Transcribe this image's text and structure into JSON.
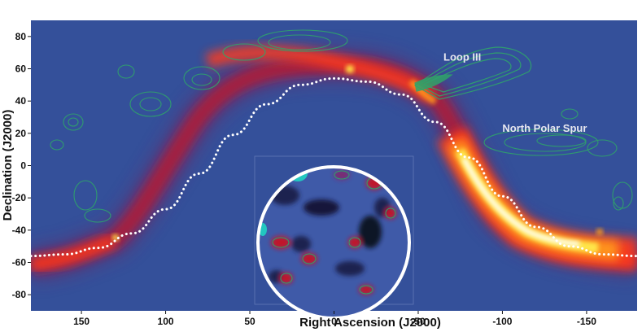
{
  "chart_data": {
    "type": "heatmap",
    "title": "",
    "xlabel": "Right Ascension (J2000)",
    "ylabel": "Declination (J2000)",
    "xlim": [
      180,
      -180
    ],
    "ylim": [
      -90,
      90
    ],
    "x_ticks": [
      150,
      100,
      50,
      0,
      -50,
      -100,
      -150
    ],
    "y_ticks": [
      80,
      60,
      40,
      20,
      0,
      -20,
      -40,
      -60,
      -80
    ],
    "x_tick_labels": [
      "150",
      "100",
      "50",
      "0",
      "-50",
      "-100",
      "-150"
    ],
    "y_tick_labels": [
      "80",
      "60",
      "40",
      "20",
      "0",
      "-20",
      "-40",
      "-60",
      "-80"
    ],
    "grid": false,
    "colormap": [
      "#34509a",
      "#6a2a6a",
      "#c0182c",
      "#ff3a1a",
      "#ff9a1a",
      "#ffe64a",
      "#ffffff"
    ],
    "background_color": "#34509a",
    "contour_color": "#2fa46a",
    "galactic_plane_color": "#ffffff",
    "inset_border_color": "#ffffff",
    "annotations": [
      {
        "text": "Loop III",
        "x": -65,
        "y": 65
      },
      {
        "text": "North Polar Spur",
        "x": -100,
        "y": 21
      }
    ],
    "galactic_plane_ra": [
      180,
      160,
      140,
      120,
      100,
      80,
      60,
      40,
      20,
      0,
      -20,
      -40,
      -60,
      -80,
      -100,
      -120,
      -140,
      -160,
      -180
    ],
    "galactic_plane_dec": [
      -56,
      -55,
      -51,
      -42,
      -27,
      -5,
      19,
      38,
      50,
      54,
      52,
      44,
      27,
      5,
      -19,
      -38,
      -50,
      -55,
      -56
    ],
    "inset_center": {
      "ra": 0,
      "dec": -15
    },
    "inset_radius_dec": 40
  }
}
